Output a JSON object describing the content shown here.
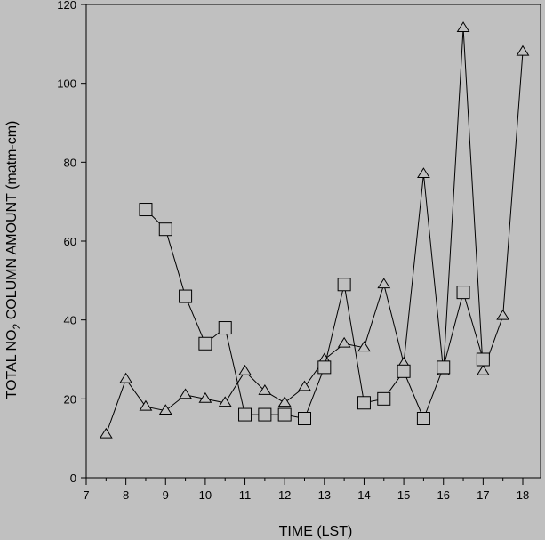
{
  "chart_data": {
    "type": "line",
    "title": "",
    "xlabel": "TIME (LST)",
    "ylabel_parts": [
      "TOTAL NO",
      "2",
      " COLUMN AMOUNT (matm-cm)"
    ],
    "xlim": [
      7,
      18.3
    ],
    "ylim": [
      0,
      120
    ],
    "xticks": [
      7,
      8,
      9,
      10,
      11,
      12,
      13,
      14,
      15,
      16,
      17,
      18
    ],
    "yticks": [
      0,
      20,
      40,
      60,
      80,
      100,
      120
    ],
    "grid": false,
    "legend": "none",
    "series": [
      {
        "marker": "triangle",
        "x": [
          7.5,
          8,
          8.5,
          9,
          9.5,
          10,
          10.5,
          11,
          11.5,
          12,
          12.5,
          13,
          13.5,
          14,
          14.5,
          15,
          15.5,
          16,
          16.5,
          17,
          17.5,
          18
        ],
        "y": [
          11,
          25,
          18,
          17,
          21,
          20,
          19,
          27,
          22,
          19,
          23,
          30,
          34,
          33,
          49,
          29,
          77,
          27,
          114,
          27,
          41,
          108
        ]
      },
      {
        "marker": "square",
        "x": [
          8.5,
          9,
          9.5,
          10,
          10.5,
          11,
          11.5,
          12,
          12.5,
          13,
          13.5,
          14,
          14.5,
          15,
          15.5,
          16,
          16.5,
          17
        ],
        "y": [
          68,
          63,
          46,
          34,
          38,
          16,
          16,
          16,
          15,
          28,
          49,
          19,
          20,
          27,
          15,
          28,
          47,
          30
        ]
      }
    ]
  }
}
